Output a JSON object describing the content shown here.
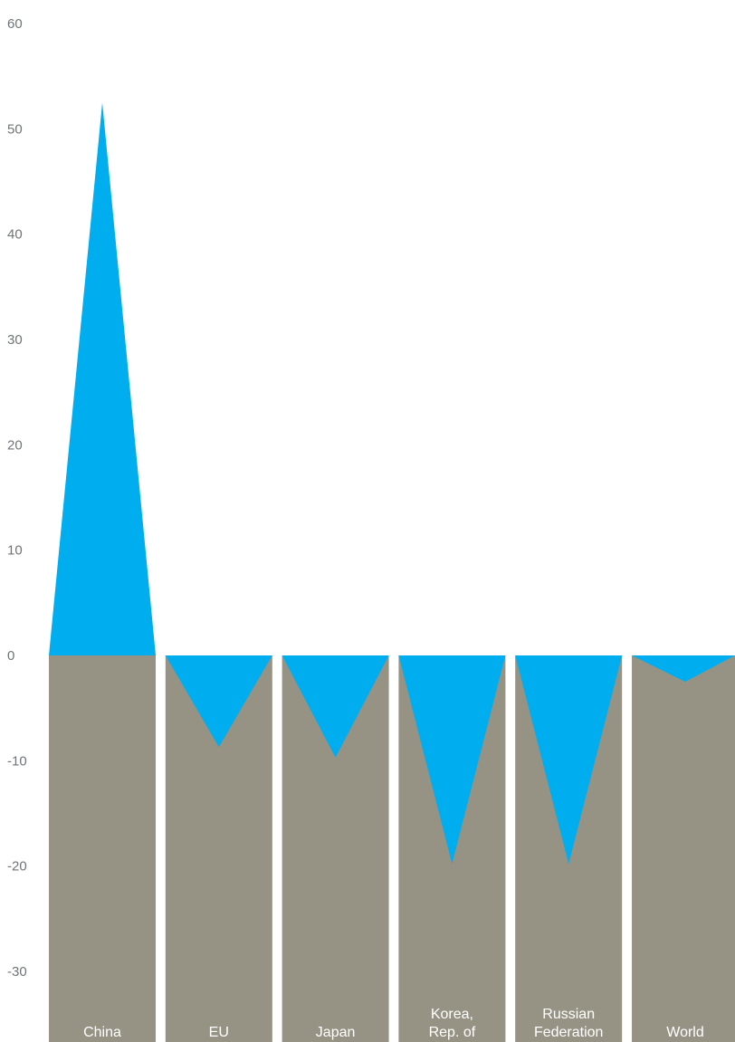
{
  "chart_data": {
    "type": "bar",
    "categories": [
      [
        "China"
      ],
      [
        "EU"
      ],
      [
        "Japan"
      ],
      [
        "Korea,",
        "Rep. of"
      ],
      [
        "Russian",
        "Federation"
      ],
      [
        "World"
      ]
    ],
    "category_names": [
      "China",
      "EU",
      "Japan",
      "Korea, Rep. of",
      "Russian Federation",
      "World"
    ],
    "values": [
      52.5,
      -8.7,
      -9.7,
      -19.8,
      -19.8,
      -2.5
    ],
    "ylim": [
      -35,
      60
    ],
    "yticks": [
      -30,
      -20,
      -10,
      0,
      10,
      20,
      30,
      40,
      50,
      60
    ],
    "title": "",
    "xlabel": "",
    "ylabel": "",
    "grid": false,
    "colors": {
      "value_shape": "#00aeef",
      "column": "#979384",
      "tick_text": "#6f7478",
      "category_text": "#ffffff"
    }
  }
}
